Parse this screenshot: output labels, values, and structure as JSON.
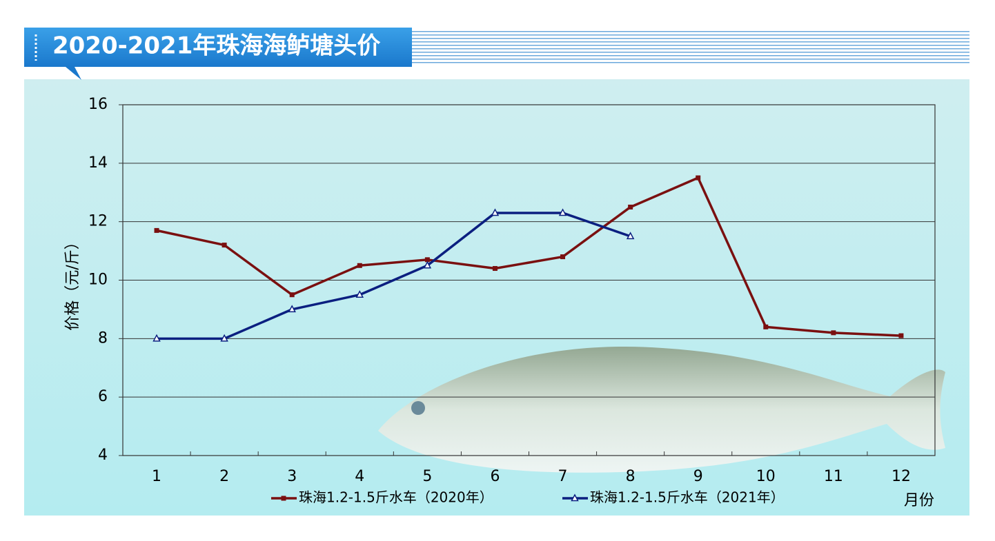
{
  "chart_data": {
    "type": "line",
    "title": "2020-2021年珠海海鲈塘头价",
    "y_label": "价格（元/斤）",
    "x_label": "月份",
    "categories": [
      "1",
      "2",
      "3",
      "4",
      "5",
      "6",
      "7",
      "8",
      "9",
      "10",
      "11",
      "12"
    ],
    "series": [
      {
        "name": "珠海1.2-1.5斤水车（2020年）",
        "color": "#7a1010",
        "marker": "square",
        "values": [
          11.7,
          11.2,
          9.5,
          10.5,
          10.7,
          10.4,
          10.8,
          12.5,
          13.5,
          8.4,
          8.2,
          8.1
        ]
      },
      {
        "name": "珠海1.2-1.5斤水车（2021年）",
        "color": "#0b1f80",
        "marker": "triangle",
        "values": [
          8,
          8,
          9,
          9.5,
          10.5,
          12.3,
          12.3,
          11.5,
          null,
          null,
          null,
          null
        ]
      }
    ],
    "ylim": [
      4,
      16
    ],
    "yticks": [
      4,
      6,
      8,
      10,
      12,
      14,
      16
    ],
    "grid": true
  }
}
